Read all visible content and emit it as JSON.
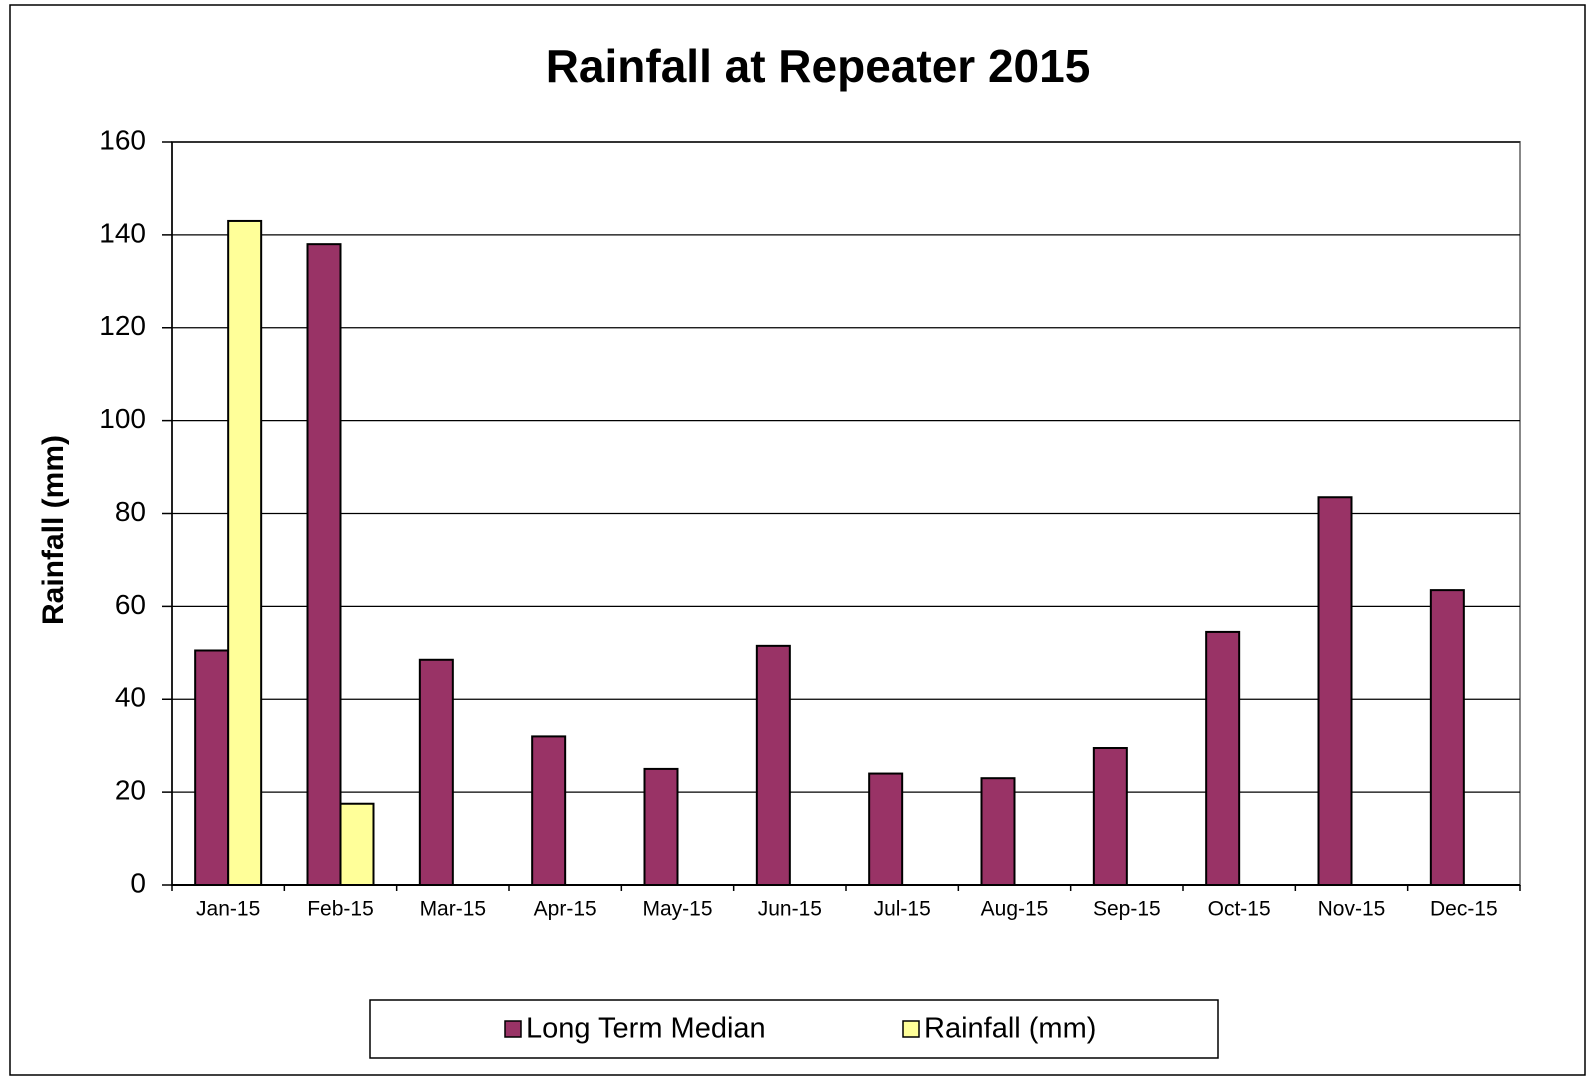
{
  "chart_data": {
    "type": "bar",
    "title": "Rainfall at Repeater 2015",
    "y_label": "Rainfall (mm)",
    "categories": [
      "Jan-15",
      "Feb-15",
      "Mar-15",
      "Apr-15",
      "May-15",
      "Jun-15",
      "Jul-15",
      "Aug-15",
      "Sep-15",
      "Oct-15",
      "Nov-15",
      "Dec-15"
    ],
    "series": [
      {
        "name": "Long Term Median",
        "color": "#993366",
        "values": [
          50.5,
          138,
          48.5,
          32,
          25,
          51.5,
          24,
          23,
          29.5,
          54.5,
          83.5,
          63.5
        ]
      },
      {
        "name": "Rainfall (mm)",
        "color": "#ffff99",
        "values": [
          143,
          17.5,
          null,
          null,
          null,
          null,
          null,
          null,
          null,
          null,
          null,
          null
        ]
      }
    ],
    "ylim": [
      0,
      160
    ],
    "yticks": [
      0,
      20,
      40,
      60,
      80,
      100,
      120,
      140,
      160
    ],
    "grid": true,
    "legend": "bottom"
  }
}
